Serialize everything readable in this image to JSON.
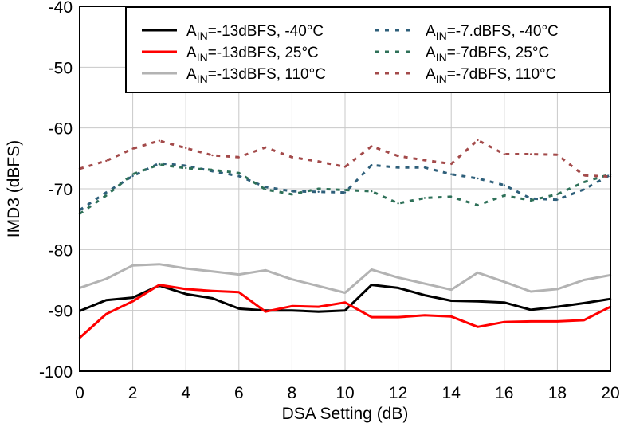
{
  "chart_data": {
    "type": "line",
    "title": "",
    "xlabel": "DSA Setting (dB)",
    "ylabel": "IMD3 (dBFS)",
    "xlim": [
      0,
      20
    ],
    "ylim": [
      -100,
      -40
    ],
    "xticks": [
      "0",
      "2",
      "4",
      "6",
      "8",
      "10",
      "12",
      "14",
      "16",
      "18",
      "20"
    ],
    "yticks": [
      "-40",
      "-50",
      "-60",
      "-70",
      "-80",
      "-90",
      "-100"
    ],
    "grid": true,
    "legend_position": "top-right",
    "x": [
      0,
      1,
      2,
      3,
      4,
      5,
      6,
      7,
      8,
      9,
      10,
      11,
      12,
      13,
      14,
      15,
      16,
      17,
      18,
      19,
      20
    ],
    "series": [
      {
        "name": "-13dBFS, -40°C",
        "label_prefix": "A",
        "label_sub": "IN",
        "label_rest": "=-13dBFS, -40°C",
        "color": "#000000",
        "style": "solid",
        "values": [
          -90.1,
          -88.3,
          -87.9,
          -85.9,
          -87.3,
          -88.0,
          -89.7,
          -90.0,
          -90.0,
          -90.2,
          -90.0,
          -85.8,
          -86.3,
          -87.5,
          -88.4,
          -88.5,
          -88.7,
          -89.9,
          -89.4,
          -88.8,
          -88.1
        ]
      },
      {
        "name": "-13dBFS, 25°C",
        "label_prefix": "A",
        "label_sub": "IN",
        "label_rest": "=-13dBFS, 25°C",
        "color": "#ff0000",
        "style": "solid",
        "values": [
          -94.5,
          -90.6,
          -88.5,
          -85.8,
          -86.5,
          -86.8,
          -87.0,
          -90.2,
          -89.3,
          -89.4,
          -88.7,
          -91.1,
          -91.1,
          -90.8,
          -91.0,
          -92.7,
          -91.9,
          -91.8,
          -91.8,
          -91.6,
          -89.4
        ]
      },
      {
        "name": "-13dBFS, 110°C",
        "label_prefix": "A",
        "label_sub": "IN",
        "label_rest": "=-13dBFS, 110°C",
        "color": "#b3b3b3",
        "style": "solid",
        "values": [
          -86.3,
          -84.8,
          -82.6,
          -82.4,
          -83.1,
          -83.6,
          -84.1,
          -83.4,
          -84.9,
          -86.0,
          -87.1,
          -83.3,
          -84.6,
          -85.6,
          -86.6,
          -83.8,
          -85.3,
          -86.9,
          -86.5,
          -85.0,
          -84.2
        ]
      },
      {
        "name": "-7.dBFS, -40°C",
        "label_prefix": "A",
        "label_sub": "IN",
        "label_rest": "=-7.dBFS, -40°C",
        "color": "#2e5f7a",
        "style": "dashed",
        "values": [
          -73.5,
          -70.6,
          -67.9,
          -65.8,
          -66.2,
          -67.1,
          -67.9,
          -69.7,
          -70.4,
          -70.5,
          -70.6,
          -66.1,
          -66.5,
          -66.5,
          -67.6,
          -68.3,
          -69.4,
          -71.6,
          -71.8,
          -70.1,
          -67.7
        ]
      },
      {
        "name": "-7dBFS, 25°C",
        "label_prefix": "A",
        "label_sub": "IN",
        "label_rest": "=-7dBFS, 25°C",
        "color": "#2e7058",
        "style": "dashed",
        "values": [
          -74.1,
          -71.1,
          -67.6,
          -66.0,
          -66.6,
          -66.9,
          -67.4,
          -70.1,
          -70.9,
          -70.0,
          -70.2,
          -70.4,
          -72.4,
          -71.5,
          -71.3,
          -72.7,
          -71.1,
          -71.9,
          -70.9,
          -68.9,
          -67.6
        ]
      },
      {
        "name": "-7dBFS, 110°C",
        "label_prefix": "A",
        "label_sub": "IN",
        "label_rest": "=-7dBFS, 110°C",
        "color": "#a34a4a",
        "style": "dashed",
        "values": [
          -66.7,
          -65.4,
          -63.4,
          -62.1,
          -63.3,
          -64.5,
          -64.8,
          -63.2,
          -64.8,
          -65.5,
          -66.4,
          -63.0,
          -64.6,
          -65.3,
          -65.9,
          -62.0,
          -64.3,
          -64.3,
          -64.4,
          -67.8,
          -68.0
        ]
      }
    ]
  }
}
